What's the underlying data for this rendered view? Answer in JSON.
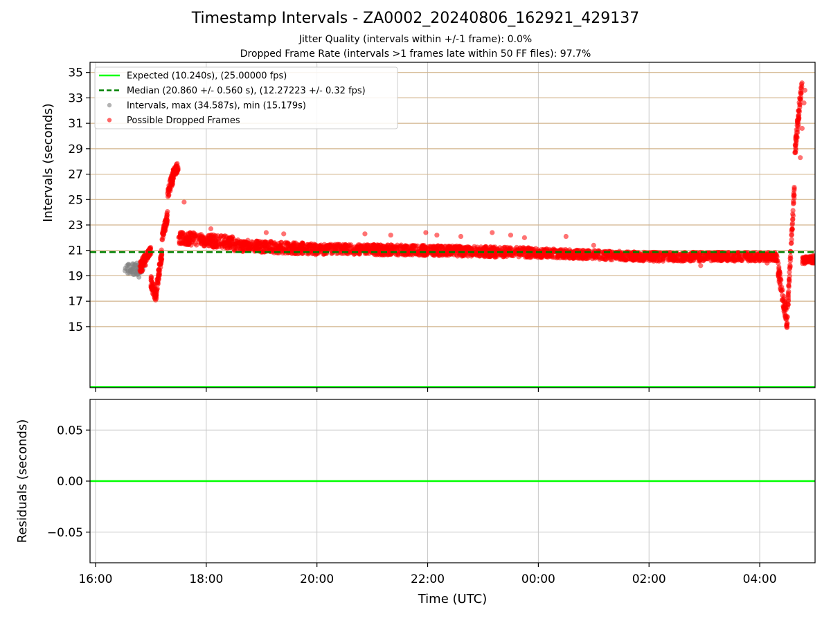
{
  "title": "Timestamp Intervals - ZA0002_20240806_162921_429137",
  "subtitle_1": "Jitter Quality (intervals within +/-1 frame): 0.0%",
  "subtitle_2": "Dropped Frame Rate (intervals >1 frames late within 50 FF files): 97.7%",
  "colors": {
    "expected": "#00ff00",
    "median": "#008000",
    "intervals": "#808080",
    "dropped": "#ff0000",
    "hgrid_top": "#d2b48c",
    "vgrid": "#c8c8c8"
  },
  "chart_data": [
    {
      "type": "scatter",
      "ylabel": "Intervals (seconds)",
      "x_axis": "time of day (UTC), hours past 16:00",
      "xlim_times": [
        "15:54",
        "05:00"
      ],
      "ylim": [
        10.2,
        35.8
      ],
      "yticks": [
        15,
        17,
        19,
        21,
        23,
        25,
        27,
        29,
        31,
        33,
        35
      ],
      "ytick_labels": [
        "15",
        "17",
        "19",
        "21",
        "23",
        "25",
        "27",
        "29",
        "31",
        "33",
        "35"
      ],
      "grid": "horizontal major lines in tan, vertical lines in light gray",
      "legend_position": "upper left",
      "lines": [
        {
          "name": "Expected (10.240s), (25.00000 fps)",
          "y": 10.24,
          "style": "solid",
          "color": "#00ff00"
        },
        {
          "name": "Median (20.860 +/- 0.560 s), (12.27223 +/- 0.32 fps)",
          "y": 20.86,
          "style": "dashed",
          "color": "#008000"
        }
      ],
      "series": [
        {
          "name": "Intervals, max (34.587s), min (15.179s)",
          "color": "#808080",
          "points": [
            [
              "16:32",
              19.4
            ],
            [
              "16:34",
              19.8
            ],
            [
              "16:35",
              19.2
            ],
            [
              "16:36",
              19.9
            ],
            [
              "16:38",
              19.5
            ],
            [
              "16:39",
              19.3
            ],
            [
              "16:41",
              19.7
            ],
            [
              "16:42",
              19.1
            ],
            [
              "16:44",
              19.6
            ],
            [
              "16:45",
              19.4
            ],
            [
              "16:46",
              19.8
            ],
            [
              "16:47",
              18.9
            ],
            [
              "16:49",
              19.5
            ],
            [
              "16:50",
              19.3
            ],
            [
              "16:51",
              19.7
            ]
          ]
        },
        {
          "name": "Possible Dropped Frames",
          "color": "#ff0000",
          "segments": [
            {
              "from": "16:48",
              "to": "16:56",
              "start": 19.6,
              "end": 20.5,
              "spread": 0.5
            },
            {
              "from": "16:56",
              "to": "17:00",
              "start": 20.6,
              "end": 21.0,
              "spread": 0.3
            },
            {
              "from": "17:00",
              "to": "17:06",
              "start": 18.5,
              "end": 17.3,
              "spread": 0.5
            },
            {
              "from": "17:06",
              "to": "17:12",
              "start": 18.0,
              "end": 20.8,
              "spread": 0.5
            },
            {
              "from": "17:12",
              "to": "17:18",
              "start": 22.0,
              "end": 23.7,
              "spread": 0.4
            },
            {
              "from": "17:18",
              "to": "17:24",
              "start": 25.5,
              "end": 26.8,
              "spread": 0.5
            },
            {
              "from": "17:24",
              "to": "17:30",
              "start": 27.0,
              "end": 27.7,
              "spread": 0.4
            },
            {
              "from": "17:30",
              "to": "18:30",
              "start": 22.0,
              "end": 21.6,
              "spread": 0.5
            },
            {
              "from": "18:30",
              "to": "20:00",
              "start": 21.4,
              "end": 21.1,
              "spread": 0.45
            },
            {
              "from": "20:00",
              "to": "22:00",
              "start": 21.1,
              "end": 21.0,
              "spread": 0.4
            },
            {
              "from": "22:00",
              "to": "00:00",
              "start": 21.0,
              "end": 20.8,
              "spread": 0.4
            },
            {
              "from": "00:00",
              "to": "02:00",
              "start": 20.8,
              "end": 20.5,
              "spread": 0.35
            },
            {
              "from": "02:00",
              "to": "04:20",
              "start": 20.5,
              "end": 20.5,
              "spread": 0.35
            },
            {
              "from": "04:20",
              "to": "04:30",
              "start": 19.5,
              "end": 15.2,
              "spread": 0.6
            },
            {
              "from": "04:30",
              "to": "04:38",
              "start": 16.0,
              "end": 26.5,
              "spread": 0.5
            },
            {
              "from": "04:38",
              "to": "04:46",
              "start": 28.5,
              "end": 34.6,
              "spread": 0.6
            },
            {
              "from": "04:46",
              "to": "05:00",
              "start": 20.2,
              "end": 20.3,
              "spread": 0.3
            }
          ],
          "outliers": [
            [
              "17:36",
              24.8
            ],
            [
              "18:05",
              22.7
            ],
            [
              "19:05",
              22.4
            ],
            [
              "19:24",
              22.3
            ],
            [
              "20:52",
              22.3
            ],
            [
              "21:20",
              22.2
            ],
            [
              "21:58",
              22.4
            ],
            [
              "22:10",
              22.2
            ],
            [
              "22:36",
              22.1
            ],
            [
              "23:10",
              22.4
            ],
            [
              "23:30",
              22.2
            ],
            [
              "23:45",
              22.0
            ],
            [
              "00:30",
              22.1
            ],
            [
              "01:00",
              21.4
            ],
            [
              "02:56",
              19.8
            ],
            [
              "04:08",
              20.0
            ],
            [
              "04:44",
              28.3
            ],
            [
              "04:46",
              30.6
            ],
            [
              "04:48",
              32.6
            ],
            [
              "04:49",
              33.6
            ]
          ]
        }
      ]
    },
    {
      "type": "line",
      "xlabel": "Time (UTC)",
      "ylabel": "Residuals (seconds)",
      "ylim": [
        -0.08,
        0.08
      ],
      "yticks": [
        0.05,
        0.0,
        -0.05
      ],
      "ytick_labels": [
        "0.05",
        "0.00",
        "−0.05"
      ],
      "xticks": [
        "16:00",
        "18:00",
        "20:00",
        "22:00",
        "00:00",
        "02:00",
        "04:00"
      ],
      "grid": "on, light gray",
      "series": [
        {
          "name": "Residuals",
          "y": 0.0,
          "color": "#00ff00"
        }
      ]
    }
  ]
}
